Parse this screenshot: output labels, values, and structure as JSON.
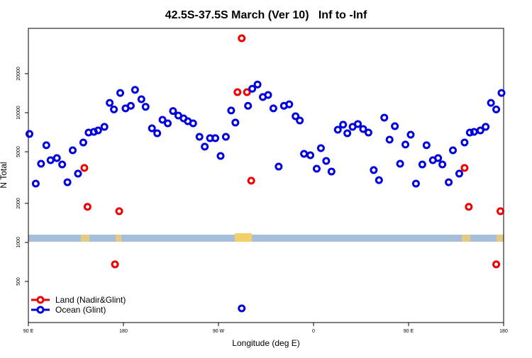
{
  "chart_data": {
    "type": "scatter",
    "title": "42.5S-37.5S March (Ver 10)   Inf to -Inf",
    "xlabel": "Longitude (deg E)",
    "ylabel": "N Total",
    "log_y": true,
    "legend": "bottom-left",
    "xlim": [
      90,
      540
    ],
    "xticks": [
      {
        "value": 90,
        "label": "90 E"
      },
      180,
      {
        "value": 270,
        "label": "90 W"
      },
      {
        "value": 360,
        "label": "0"
      },
      {
        "value": 450,
        "label": "90 E"
      },
      {
        "value": 540,
        "label": "180"
      }
    ],
    "ylim": [
      241,
      44700
    ],
    "yticks": [
      500,
      1000,
      2000,
      5000,
      10000,
      20000
    ],
    "series": [
      {
        "name": "Land (Nadir&Glint)",
        "color": "#ee0000",
        "x": [
          143,
          146,
          172,
          176,
          288,
          292,
          297,
          301,
          503,
          507,
          533,
          537
        ],
        "values": [
          3750,
          1880,
          677,
          1740,
          14400,
          37500,
          14400,
          2990,
          3750,
          1880,
          677,
          1740
        ]
      },
      {
        "name": "Ocean (Glint)",
        "color": "#0000dd",
        "x": [
          91,
          97,
          102,
          107,
          111,
          117,
          122,
          127,
          132,
          137,
          142,
          147,
          152,
          156,
          162,
          167,
          171,
          177,
          182,
          187,
          191,
          197,
          201,
          207,
          212,
          217,
          222,
          227,
          232,
          237,
          241,
          246,
          252,
          257,
          262,
          267,
          272,
          277,
          282,
          286,
          292,
          298,
          302,
          307,
          312,
          317,
          322,
          327,
          332,
          337,
          343,
          347,
          351,
          357,
          363,
          367,
          372,
          377,
          383,
          388,
          392,
          397,
          402,
          407,
          412,
          417,
          422,
          427,
          432,
          437,
          442,
          447,
          452,
          457,
          463,
          467,
          473,
          478,
          482,
          488,
          492,
          498,
          503,
          508,
          512,
          518,
          523,
          528,
          533,
          538
        ],
        "values": [
          6860,
          2840,
          4040,
          5610,
          4300,
          4470,
          3990,
          2910,
          5130,
          3390,
          5890,
          7030,
          7120,
          7300,
          7780,
          11900,
          10600,
          14200,
          10800,
          11300,
          15000,
          12700,
          11100,
          7580,
          6940,
          8820,
          8280,
          10300,
          9510,
          9040,
          8600,
          8280,
          6520,
          5470,
          6360,
          6360,
          4640,
          6520,
          10400,
          8390,
          310,
          11300,
          15300,
          16500,
          13200,
          13700,
          10800,
          3840,
          11300,
          11600,
          9390,
          8710,
          4820,
          4700,
          3700,
          5330,
          4250,
          3520,
          7390,
          8080,
          6940,
          7780,
          8180,
          7490,
          7030,
          3610,
          3020,
          9160,
          6200,
          7870,
          4040,
          5680,
          6770,
          2840,
          3990,
          5610,
          4300,
          4470,
          3990,
          2910,
          5130,
          3390,
          5890,
          7030,
          7120,
          7300,
          7780,
          11900,
          10600,
          14200
        ]
      }
    ]
  }
}
